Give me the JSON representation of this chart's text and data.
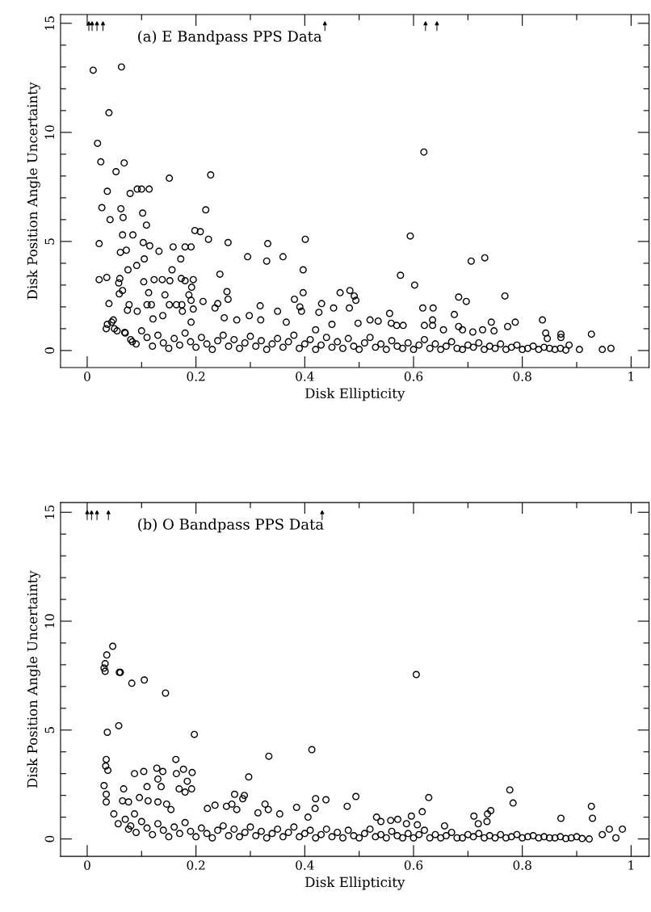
{
  "chart_data": [
    {
      "type": "scatter",
      "title": "(a) E Bandpass PPS Data",
      "xlabel": "Disk Ellipticity",
      "ylabel": "Disk Position Angle Uncertainty",
      "marker": "circle",
      "xlim": [
        -0.049,
        1.033
      ],
      "ylim": [
        -0.78,
        15.4
      ],
      "xticks": [
        0,
        {
          "value": 0.1,
          "label": null
        },
        0.2,
        {
          "value": 0.3,
          "label": null
        },
        0.4,
        {
          "value": 0.5,
          "label": null
        },
        0.6,
        {
          "value": 0.7,
          "label": null
        },
        0.8,
        {
          "value": 0.9,
          "label": null
        },
        1
      ],
      "yticks": [
        0,
        {
          "value": 1,
          "label": null
        },
        {
          "value": 2,
          "label": null
        },
        {
          "value": 3,
          "label": null
        },
        {
          "value": 4,
          "label": null
        },
        5,
        {
          "value": 6,
          "label": null
        },
        {
          "value": 7,
          "label": null
        },
        {
          "value": 8,
          "label": null
        },
        {
          "value": 9,
          "label": null
        },
        10,
        {
          "value": 11,
          "label": null
        },
        {
          "value": 12,
          "label": null
        },
        {
          "value": 13,
          "label": null
        },
        {
          "value": 14,
          "label": null
        },
        15
      ],
      "annotations": [
        {
          "text": "↑",
          "x": 0.003,
          "y": 15
        },
        {
          "text": "↑",
          "x": 0.009,
          "y": 15
        },
        {
          "text": "↑",
          "x": 0.018,
          "y": 15
        },
        {
          "text": "↑",
          "x": 0.029,
          "y": 15
        },
        {
          "text": "↑",
          "x": 0.437,
          "y": 15
        },
        {
          "text": "↑",
          "x": 0.622,
          "y": 15
        },
        {
          "text": "↑",
          "x": 0.643,
          "y": 15
        }
      ],
      "series": [
        {
          "color": "#000000",
          "marker": "triangle",
          "x": [
            0.003,
            0.009,
            0.018,
            0.029,
            0.437,
            0.622,
            0.643
          ],
          "values": [
            15,
            15,
            15,
            15,
            15,
            15,
            15
          ]
        },
        {
          "color": "#000000",
          "x": [
            0.011,
            0.063,
            0.04,
            0.019,
            0.025,
            0.068,
            0.053,
            0.151,
            0.227,
            0.037,
            0.079,
            0.092,
            0.1,
            0.114,
            0.027,
            0.062,
            0.066,
            0.042,
            0.102,
            0.109,
            0.218,
            0.022,
            0.065,
            0.084,
            0.198,
            0.208,
            0.223,
            0.259,
            0.332,
            0.401,
            0.061,
            0.072,
            0.103,
            0.115,
            0.132,
            0.158,
            0.18,
            0.191,
            0.172,
            0.105,
            0.295,
            0.33,
            0.36,
            0.075,
            0.091,
            0.156,
            0.244,
            0.397,
            0.022,
            0.036,
            0.06,
            0.058,
            0.104,
            0.123,
            0.138,
            0.152,
            0.173,
            0.18,
            0.195,
            0.192,
            0.065,
            0.059,
            0.113,
            0.143,
            0.187,
            0.191,
            0.195,
            0.257,
            0.259,
            0.397,
            0.465,
            0.483,
            0.491,
            0.494,
            0.04,
            0.077,
            0.11,
            0.118,
            0.151,
            0.164,
            0.174,
            0.213,
            0.24,
            0.318,
            0.381,
            0.391,
            0.431,
            0.453,
            0.482,
            0.037,
            0.048,
            0.074,
            0.092,
            0.139,
            0.175,
            0.235,
            0.298,
            0.35,
            0.394,
            0.426,
            0.05,
            0.069,
            0.083,
            0.121,
            0.191,
            0.252,
            0.275,
            0.319,
            0.366,
            0.42,
            0.45,
            0.619,
            0.594,
            0.706,
            0.731,
            0.576,
            0.602,
            0.683,
            0.697,
            0.768,
            0.617,
            0.636,
            0.675,
            0.556,
            0.635,
            0.635,
            0.837,
            0.743,
            0.787,
            0.773,
            0.843,
            0.846,
            0.871,
            0.871,
            0.927,
            0.886,
            0.905,
            0.947,
            0.963,
            0.498,
            0.52,
            0.535,
            0.559,
            0.569,
            0.581,
            0.62,
            0.655,
            0.683,
            0.69,
            0.709,
            0.727,
            0.748,
            0.035,
            0.045,
            0.055,
            0.07,
            0.08,
            0.09,
            0.1,
            0.11,
            0.12,
            0.13,
            0.14,
            0.15,
            0.16,
            0.17,
            0.18,
            0.19,
            0.2,
            0.21,
            0.22,
            0.23,
            0.24,
            0.25,
            0.26,
            0.27,
            0.28,
            0.29,
            0.3,
            0.31,
            0.32,
            0.33,
            0.34,
            0.35,
            0.36,
            0.37,
            0.38,
            0.39,
            0.4,
            0.41,
            0.42,
            0.43,
            0.44,
            0.45,
            0.46,
            0.47,
            0.48,
            0.49,
            0.5,
            0.51,
            0.52,
            0.53,
            0.54,
            0.55,
            0.56,
            0.57,
            0.58,
            0.59,
            0.6,
            0.61,
            0.62,
            0.63,
            0.64,
            0.65,
            0.66,
            0.67,
            0.68,
            0.69,
            0.7,
            0.71,
            0.72,
            0.73,
            0.74,
            0.75,
            0.76,
            0.77,
            0.78,
            0.79,
            0.8,
            0.81,
            0.82,
            0.83,
            0.84,
            0.85,
            0.86,
            0.87,
            0.88
          ],
          "values": [
            12.85,
            13.0,
            10.9,
            9.5,
            8.65,
            8.6,
            8.2,
            7.9,
            8.05,
            7.3,
            7.2,
            7.4,
            7.4,
            7.4,
            6.55,
            6.5,
            6.1,
            6.0,
            6.3,
            5.75,
            6.45,
            4.9,
            5.3,
            5.3,
            5.5,
            5.45,
            5.1,
            4.95,
            4.9,
            5.1,
            4.5,
            4.6,
            4.95,
            4.8,
            4.55,
            4.75,
            4.75,
            4.75,
            4.2,
            4.2,
            4.3,
            4.1,
            4.3,
            3.7,
            3.9,
            3.7,
            3.5,
            3.7,
            3.25,
            3.35,
            3.3,
            3.1,
            3.15,
            3.25,
            3.25,
            3.2,
            3.3,
            3.2,
            3.25,
            2.9,
            2.75,
            2.6,
            2.65,
            2.55,
            2.55,
            2.3,
            1.9,
            2.7,
            2.35,
            2.65,
            2.65,
            2.75,
            2.5,
            2.3,
            2.15,
            2.1,
            2.1,
            2.1,
            2.1,
            2.1,
            2.1,
            2.25,
            2.15,
            2.05,
            2.35,
            2.0,
            2.15,
            1.95,
            1.95,
            1.2,
            1.4,
            1.85,
            1.8,
            1.6,
            1.8,
            1.95,
            1.6,
            1.8,
            1.8,
            1.75,
            1.0,
            0.83,
            0.4,
            1.45,
            1.3,
            1.5,
            1.4,
            1.4,
            1.3,
            0.95,
            1.2,
            9.1,
            5.25,
            4.1,
            4.25,
            3.45,
            3.0,
            2.45,
            2.25,
            2.5,
            1.95,
            1.95,
            1.65,
            1.7,
            1.4,
            1.15,
            1.4,
            1.3,
            1.3,
            1.1,
            0.8,
            0.55,
            0.75,
            0.6,
            0.75,
            0.25,
            0.05,
            0.05,
            0.1,
            1.25,
            1.4,
            1.35,
            1.25,
            1.15,
            1.15,
            1.15,
            0.95,
            1.1,
            0.95,
            0.85,
            0.95,
            0.9,
            1.0,
            1.3,
            0.9,
            0.8,
            0.5,
            0.3,
            0.9,
            0.6,
            0.2,
            0.7,
            0.35,
            0.1,
            0.55,
            0.25,
            0.8,
            0.4,
            0.15,
            0.6,
            0.3,
            0.05,
            0.45,
            0.7,
            0.2,
            0.5,
            0.1,
            0.35,
            0.65,
            0.2,
            0.45,
            0.05,
            0.3,
            0.55,
            0.15,
            0.4,
            0.7,
            0.1,
            0.3,
            0.5,
            0.05,
            0.25,
            0.6,
            0.15,
            0.4,
            0.1,
            0.55,
            0.2,
            0.05,
            0.35,
            0.6,
            0.15,
            0.3,
            0.05,
            0.45,
            0.2,
            0.1,
            0.35,
            0.05,
            0.25,
            0.5,
            0.1,
            0.3,
            0.05,
            0.2,
            0.4,
            0.1,
            0.05,
            0.25,
            0.15,
            0.35,
            0.05,
            0.2,
            0.1,
            0.3,
            0.05,
            0.15,
            0.25,
            0.05,
            0.1,
            0.2,
            0.05,
            0.15,
            0.1,
            0.05,
            0.1,
            0.02
          ]
        }
      ]
    },
    {
      "type": "scatter",
      "title": "(b) O Bandpass PPS Data",
      "xlabel": "Disk Ellipticity",
      "ylabel": "Disk Position Angle Uncertainty",
      "marker": "circle",
      "xlim": [
        -0.049,
        1.033
      ],
      "ylim": [
        -0.8,
        15.45
      ],
      "xticks": [
        0,
        {
          "value": 0.1,
          "label": null
        },
        0.2,
        {
          "value": 0.3,
          "label": null
        },
        0.4,
        {
          "value": 0.5,
          "label": null
        },
        0.6,
        {
          "value": 0.7,
          "label": null
        },
        0.8,
        {
          "value": 0.9,
          "label": null
        },
        1
      ],
      "yticks": [
        0,
        {
          "value": 1,
          "label": null
        },
        {
          "value": 2,
          "label": null
        },
        {
          "value": 3,
          "label": null
        },
        {
          "value": 4,
          "label": null
        },
        5,
        {
          "value": 6,
          "label": null
        },
        {
          "value": 7,
          "label": null
        },
        {
          "value": 8,
          "label": null
        },
        {
          "value": 9,
          "label": null
        },
        10,
        {
          "value": 11,
          "label": null
        },
        {
          "value": 12,
          "label": null
        },
        {
          "value": 13,
          "label": null
        },
        {
          "value": 14,
          "label": null
        },
        15
      ],
      "annotations": [
        {
          "text": "↑",
          "x": 0.0,
          "y": 15
        },
        {
          "text": "↑",
          "x": 0.008,
          "y": 15
        },
        {
          "text": "↑",
          "x": 0.018,
          "y": 15
        },
        {
          "text": "↑",
          "x": 0.039,
          "y": 15
        },
        {
          "text": "↑",
          "x": 0.432,
          "y": 15
        }
      ],
      "series": [
        {
          "color": "#000000",
          "marker": "triangle",
          "x": [
            0.0,
            0.008,
            0.018,
            0.039,
            0.432
          ],
          "values": [
            15,
            15,
            15,
            15,
            15
          ]
        },
        {
          "color": "#000000",
          "x": [
            0.047,
            0.036,
            0.033,
            0.031,
            0.033,
            0.059,
            0.061,
            0.082,
            0.105,
            0.144,
            0.037,
            0.058,
            0.197,
            0.413,
            0.334,
            0.035,
            0.034,
            0.038,
            0.031,
            0.035,
            0.035,
            0.087,
            0.104,
            0.128,
            0.139,
            0.13,
            0.136,
            0.11,
            0.163,
            0.164,
            0.177,
            0.193,
            0.184,
            0.192,
            0.169,
            0.18,
            0.297,
            0.271,
            0.289,
            0.286,
            0.42,
            0.439,
            0.419,
            0.494,
            0.478,
            0.067,
            0.065,
            0.076,
            0.049,
            0.057,
            0.076,
            0.087,
            0.096,
            0.112,
            0.13,
            0.154,
            0.146,
            0.221,
            0.235,
            0.256,
            0.266,
            0.275,
            0.327,
            0.333,
            0.385,
            0.314,
            0.354,
            0.406,
            0.605,
            0.628,
            0.777,
            0.783,
            0.927,
            0.929,
            0.871,
            0.742,
            0.736,
            0.711,
            0.719,
            0.735,
            0.616,
            0.596,
            0.532,
            0.54,
            0.558,
            0.571,
            0.657,
            0.587,
            0.607,
            0.947,
            0.96,
            0.972,
            0.984,
            0.923,
            0.07,
            0.08,
            0.09,
            0.1,
            0.11,
            0.12,
            0.13,
            0.14,
            0.15,
            0.16,
            0.17,
            0.18,
            0.19,
            0.2,
            0.21,
            0.22,
            0.23,
            0.24,
            0.25,
            0.26,
            0.27,
            0.28,
            0.29,
            0.3,
            0.31,
            0.32,
            0.33,
            0.34,
            0.35,
            0.36,
            0.37,
            0.38,
            0.39,
            0.4,
            0.41,
            0.42,
            0.43,
            0.44,
            0.45,
            0.46,
            0.47,
            0.48,
            0.49,
            0.5,
            0.51,
            0.52,
            0.53,
            0.54,
            0.55,
            0.56,
            0.57,
            0.58,
            0.59,
            0.6,
            0.61,
            0.62,
            0.63,
            0.64,
            0.65,
            0.66,
            0.67,
            0.68,
            0.69,
            0.7,
            0.71,
            0.72,
            0.73,
            0.74,
            0.75,
            0.76,
            0.77,
            0.78,
            0.79,
            0.8,
            0.81,
            0.82,
            0.83,
            0.84,
            0.85,
            0.86,
            0.87,
            0.88,
            0.89,
            0.9,
            0.91
          ],
          "values": [
            8.85,
            8.45,
            8.05,
            7.85,
            7.7,
            7.65,
            7.65,
            7.15,
            7.3,
            6.7,
            4.9,
            5.2,
            4.8,
            4.1,
            3.8,
            3.65,
            3.35,
            3.15,
            2.45,
            2.05,
            1.7,
            3.0,
            3.1,
            3.25,
            3.1,
            2.75,
            2.4,
            2.4,
            3.65,
            3.0,
            3.2,
            3.05,
            2.65,
            2.3,
            2.3,
            2.15,
            2.85,
            2.05,
            2.0,
            1.85,
            1.85,
            1.8,
            1.4,
            1.95,
            1.5,
            2.3,
            1.75,
            1.7,
            1.15,
            0.7,
            0.45,
            1.15,
            1.9,
            1.75,
            1.7,
            1.35,
            1.6,
            1.4,
            1.55,
            1.5,
            1.6,
            1.35,
            1.6,
            1.35,
            1.45,
            1.2,
            1.15,
            1.0,
            7.55,
            1.9,
            2.25,
            1.65,
            1.5,
            0.95,
            0.95,
            1.3,
            1.15,
            1.05,
            0.7,
            0.8,
            1.25,
            1.05,
            1.0,
            0.8,
            0.85,
            0.9,
            0.6,
            0.7,
            0.65,
            0.2,
            0.45,
            0.05,
            0.45,
            0.0,
            0.9,
            0.6,
            0.3,
            0.8,
            0.5,
            0.2,
            0.7,
            0.4,
            0.1,
            0.55,
            0.25,
            0.75,
            0.35,
            0.1,
            0.5,
            0.25,
            0.05,
            0.4,
            0.6,
            0.15,
            0.45,
            0.1,
            0.3,
            0.55,
            0.15,
            0.35,
            0.05,
            0.25,
            0.45,
            0.1,
            0.3,
            0.55,
            0.1,
            0.25,
            0.4,
            0.05,
            0.2,
            0.45,
            0.1,
            0.3,
            0.05,
            0.4,
            0.15,
            0.05,
            0.25,
            0.45,
            0.1,
            0.2,
            0.05,
            0.35,
            0.15,
            0.05,
            0.25,
            0.05,
            0.2,
            0.4,
            0.05,
            0.2,
            0.05,
            0.15,
            0.3,
            0.05,
            0.05,
            0.2,
            0.1,
            0.25,
            0.05,
            0.15,
            0.05,
            0.2,
            0.05,
            0.1,
            0.2,
            0.05,
            0.1,
            0.15,
            0.05,
            0.1,
            0.05,
            0.05,
            0.1,
            0.02,
            0.05,
            0.1,
            0.02
          ]
        }
      ]
    }
  ]
}
